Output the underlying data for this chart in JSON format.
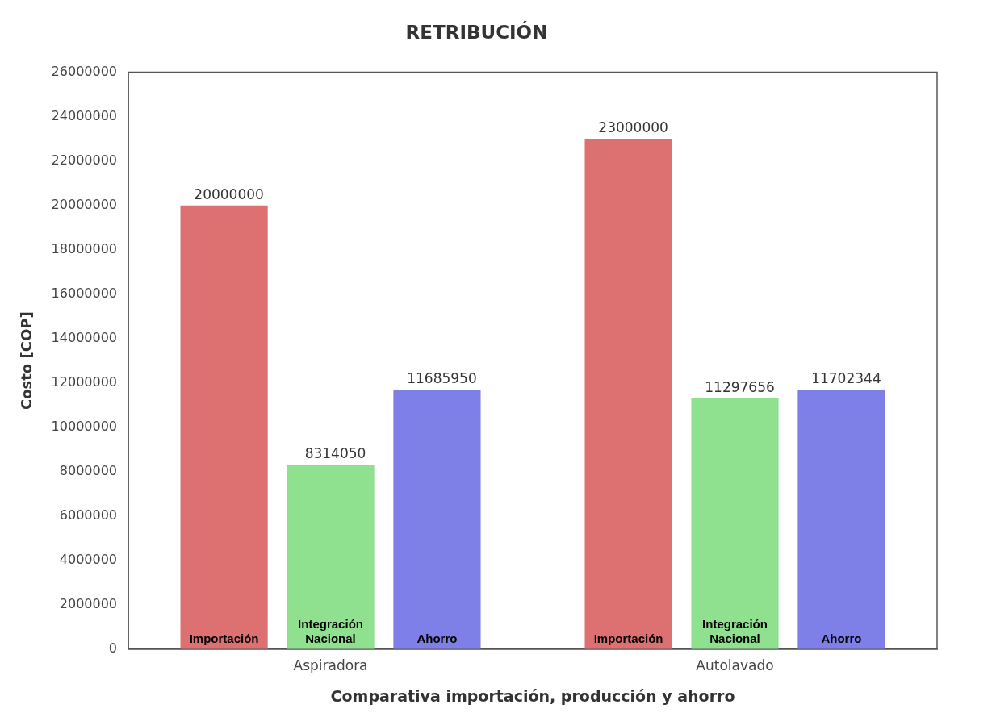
{
  "chart_data": {
    "type": "bar",
    "title": "RETRIBUCIÓN",
    "xlabel": "Comparativa importación, producción y ahorro",
    "ylabel": "Costo [COP]",
    "categories": [
      "Aspiradora",
      "Autolavado"
    ],
    "series": [
      {
        "name": "Importación",
        "color": "#dd7070",
        "values": [
          20000000,
          23000000
        ]
      },
      {
        "name": "Integración Nacional",
        "color": "#8fe08f",
        "values": [
          8314050,
          11297656
        ]
      },
      {
        "name": "Ahorro",
        "color": "#7f7fe8",
        "values": [
          11685950,
          11702344
        ]
      }
    ],
    "ylim": [
      0,
      26000000
    ],
    "yticks": [
      0,
      2000000,
      4000000,
      6000000,
      8000000,
      10000000,
      12000000,
      14000000,
      16000000,
      18000000,
      20000000,
      22000000,
      24000000,
      26000000
    ],
    "data_labels": true
  }
}
